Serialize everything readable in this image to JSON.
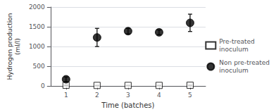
{
  "chart_data": {
    "type": "scatter",
    "xlabel": "Time (batches)",
    "ylabel": "Hydrogen production\n(ml/l)",
    "x": [
      1,
      2,
      3,
      4,
      5
    ],
    "series": [
      {
        "name": "Pre-treated\ninoculum",
        "color": "#000000",
        "marker": "open_square",
        "values": [
          20,
          15,
          15,
          15,
          20
        ],
        "errors": [
          10,
          5,
          5,
          5,
          5
        ]
      },
      {
        "name": "Non pre-treated\ninoculum",
        "color": "#000000",
        "marker": "circle",
        "values": [
          170,
          1230,
          1390,
          1360,
          1600
        ],
        "errors": [
          60,
          230,
          70,
          60,
          220
        ]
      }
    ],
    "xlim": [
      0.5,
      5.5
    ],
    "xticks": [
      1,
      2,
      3,
      4,
      5
    ],
    "ylim": [
      0,
      2000
    ],
    "yticks": [
      0,
      500,
      1000,
      1500,
      2000
    ],
    "grid": "y",
    "legend": "right"
  }
}
